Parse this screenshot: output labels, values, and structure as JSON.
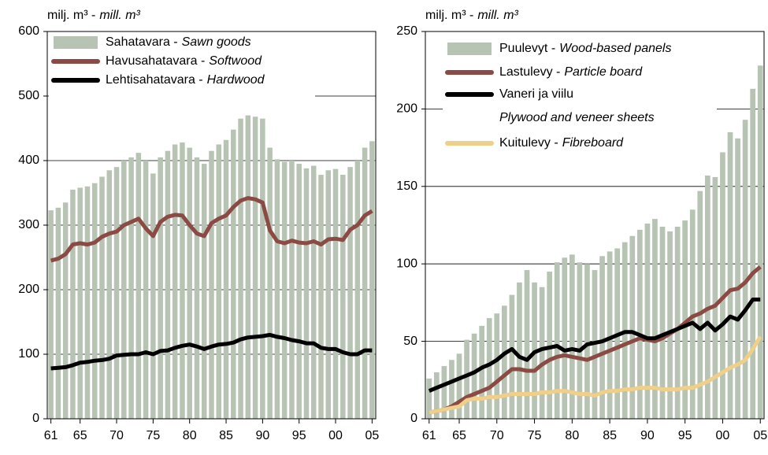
{
  "chart_data": [
    {
      "type": "bar",
      "unit": "milj. m³ -",
      "unit_en": "mill. m³",
      "categories": [
        "61",
        null,
        null,
        null,
        "65",
        null,
        null,
        null,
        null,
        "70",
        null,
        null,
        null,
        null,
        "75",
        null,
        null,
        null,
        null,
        "80",
        null,
        null,
        null,
        null,
        "85",
        null,
        null,
        null,
        null,
        "90",
        null,
        null,
        null,
        null,
        "95",
        null,
        null,
        null,
        null,
        "00",
        null,
        null,
        null,
        null,
        "05"
      ],
      "ylim": [
        0,
        600
      ],
      "yticks": [
        0,
        100,
        200,
        300,
        400,
        500,
        600
      ],
      "grid": true,
      "series": [
        {
          "name": "Sahatavara -",
          "name_en": "Sawn goods",
          "kind": "bar",
          "color": "#b7c3b3",
          "values": [
            323,
            327,
            335,
            355,
            358,
            360,
            365,
            375,
            385,
            390,
            400,
            405,
            412,
            400,
            380,
            405,
            415,
            425,
            428,
            420,
            405,
            395,
            415,
            425,
            432,
            448,
            465,
            470,
            468,
            465,
            420,
            402,
            398,
            400,
            395,
            388,
            392,
            378,
            385,
            387,
            378,
            390,
            400,
            420,
            430
          ]
        },
        {
          "name": "Havusahatavara -",
          "name_en": "Softwood",
          "kind": "line",
          "color": "#8b4a43",
          "values": [
            245,
            248,
            255,
            270,
            272,
            270,
            273,
            282,
            287,
            290,
            300,
            305,
            310,
            295,
            283,
            305,
            313,
            316,
            315,
            300,
            287,
            283,
            303,
            310,
            315,
            328,
            338,
            342,
            340,
            335,
            292,
            275,
            272,
            276,
            273,
            272,
            275,
            270,
            278,
            279,
            277,
            293,
            300,
            315,
            322
          ]
        },
        {
          "name": "Lehtisahatavara -",
          "name_en": "Hardwood",
          "kind": "line",
          "color": "#000000",
          "values": [
            78,
            79,
            80,
            83,
            87,
            88,
            90,
            91,
            93,
            98,
            99,
            100,
            100,
            103,
            100,
            105,
            106,
            110,
            113,
            115,
            112,
            108,
            112,
            115,
            116,
            118,
            123,
            126,
            127,
            128,
            130,
            127,
            125,
            122,
            120,
            117,
            117,
            110,
            108,
            108,
            103,
            100,
            100,
            106,
            106
          ]
        }
      ]
    },
    {
      "type": "bar",
      "unit": "milj. m³ -",
      "unit_en": "mill. m³",
      "categories": [
        "61",
        null,
        null,
        null,
        "65",
        null,
        null,
        null,
        null,
        "70",
        null,
        null,
        null,
        null,
        "75",
        null,
        null,
        null,
        null,
        "80",
        null,
        null,
        null,
        null,
        "85",
        null,
        null,
        null,
        null,
        "90",
        null,
        null,
        null,
        null,
        "95",
        null,
        null,
        null,
        null,
        "00",
        null,
        null,
        null,
        null,
        "05"
      ],
      "ylim": [
        0,
        250
      ],
      "yticks": [
        0,
        50,
        100,
        150,
        200,
        250
      ],
      "grid": true,
      "series": [
        {
          "name": "Puulevyt -",
          "name_en": "Wood-based panels",
          "kind": "bar",
          "color": "#b7c3b3",
          "values": [
            26,
            30,
            34,
            38,
            42,
            51,
            55,
            60,
            65,
            68,
            73,
            80,
            88,
            96,
            88,
            85,
            95,
            101,
            104,
            106,
            101,
            100,
            96,
            105,
            108,
            110,
            114,
            118,
            122,
            126,
            129,
            124,
            121,
            124,
            128,
            135,
            147,
            157,
            156,
            172,
            185,
            181,
            193,
            213,
            228
          ]
        },
        {
          "name": "Lastulevy -",
          "name_en": "Particle board",
          "kind": "line",
          "color": "#8b4a43",
          "values": [
            4,
            5,
            6,
            8,
            11,
            14,
            16,
            18,
            20,
            24,
            28,
            32,
            32,
            31,
            31,
            35,
            38,
            40,
            41,
            40,
            39,
            38,
            40,
            42,
            44,
            46,
            48,
            50,
            52,
            51,
            50,
            52,
            55,
            58,
            62,
            66,
            68,
            71,
            73,
            78,
            83,
            84,
            88,
            94,
            98
          ]
        },
        {
          "name": "Vaneri ja viilu",
          "name_en": "Plywood and veneer sheets",
          "kind": "line",
          "color": "#000000",
          "values": [
            18,
            20,
            22,
            24,
            26,
            28,
            30,
            33,
            35,
            38,
            42,
            45,
            40,
            38,
            43,
            45,
            46,
            47,
            44,
            45,
            44,
            48,
            49,
            50,
            52,
            54,
            56,
            56,
            54,
            52,
            52,
            54,
            56,
            58,
            60,
            62,
            58,
            62,
            57,
            61,
            66,
            64,
            70,
            77,
            77
          ]
        },
        {
          "name": "Kuitulevy -",
          "name_en": "Fibreboard",
          "kind": "line",
          "color": "#f0cf8a",
          "values": [
            4,
            5,
            6,
            7,
            8,
            12,
            13,
            13,
            14,
            14,
            15,
            16,
            16,
            16,
            16,
            17,
            17,
            18,
            18,
            17,
            16,
            16,
            15,
            17,
            18,
            18,
            19,
            19,
            20,
            20,
            20,
            19,
            19,
            19,
            20,
            20,
            22,
            24,
            27,
            30,
            33,
            35,
            38,
            45,
            53
          ]
        }
      ]
    }
  ]
}
